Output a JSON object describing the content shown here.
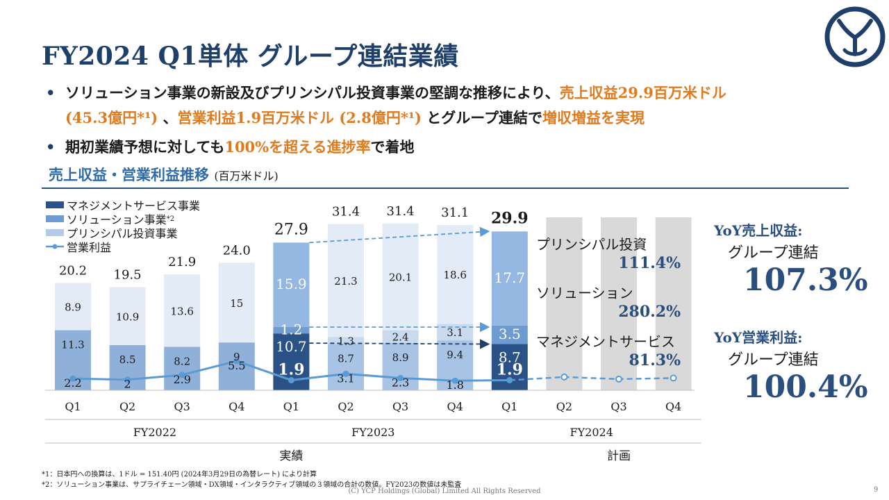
{
  "title": "FY2024 Q1単体 グループ連結業績",
  "bullets": [
    {
      "parts": [
        {
          "text": "ソリューション事業の新設及びプリンシパル投資事業の堅調な推移により、",
          "hl": false
        },
        {
          "text": "売上収益29.9百万米ドル",
          "hl": true
        }
      ]
    },
    {
      "parts": [
        {
          "text": "(45.3億円*¹)",
          "hl": true
        },
        {
          "text": " 、",
          "hl": false
        },
        {
          "text": "営業利益1.9百万米ドル (2.8億円*¹)",
          "hl": true
        },
        {
          "text": " とグループ連結で",
          "hl": false
        },
        {
          "text": "増収増益を実現",
          "hl": true
        }
      ]
    },
    {
      "parts": [
        {
          "text": "期初業績予想に対しても",
          "hl": false
        },
        {
          "text": "100%を超える進捗率",
          "hl": true
        },
        {
          "text": "で着地",
          "hl": false
        }
      ]
    }
  ],
  "chart_heading": "売上収益・営業利益推移",
  "chart_unit": "(百万米ドル)",
  "colors": {
    "management": "#2a5287",
    "solution": "#6e9bd0",
    "principal": "#d6e2f1",
    "line": "#5b9bd5",
    "plan": "#d9d9d9",
    "accent": "#e07a1f",
    "navy": "#1f3f6b"
  },
  "legend": [
    {
      "label": "マネジメントサービス事業",
      "sup": ""
    },
    {
      "label": "ソリューション事業",
      "sup": "*2"
    },
    {
      "label": "プリンシパル投資事業",
      "sup": ""
    },
    {
      "label": "営業利益",
      "sup": ""
    }
  ],
  "chart_data": {
    "type": "bar",
    "stacked": true,
    "categories": [
      "Q1",
      "Q2",
      "Q3",
      "Q4",
      "Q1",
      "Q2",
      "Q3",
      "Q4",
      "Q1",
      "Q2",
      "Q3",
      "Q4"
    ],
    "groups": [
      {
        "label": "FY2022",
        "from": 0,
        "to": 3
      },
      {
        "label": "FY2023",
        "from": 4,
        "to": 7
      },
      {
        "label": "FY2024",
        "from": 8,
        "to": 11
      }
    ],
    "super_groups": [
      {
        "label": "実績",
        "from": 0,
        "to": 8
      },
      {
        "label": "計画",
        "from": 9,
        "to": 11
      }
    ],
    "series": [
      {
        "name": "マネジメントサービス事業",
        "values": [
          11.3,
          8.5,
          8.2,
          9.0,
          10.7,
          8.7,
          8.9,
          9.4,
          8.7,
          null,
          null,
          null
        ]
      },
      {
        "name": "ソリューション事業",
        "values": [
          0,
          0,
          0,
          0,
          1.2,
          1.3,
          2.4,
          3.1,
          3.5,
          null,
          null,
          null
        ]
      },
      {
        "name": "プリンシパル投資事業",
        "values": [
          8.9,
          10.9,
          13.6,
          15.0,
          15.9,
          21.3,
          20.1,
          18.6,
          17.7,
          null,
          null,
          null
        ]
      }
    ],
    "totals": [
      "20.2",
      "19.5",
      "21.9",
      "24.0",
      "27.9",
      "31.4",
      "31.4",
      "31.1",
      "29.9",
      "",
      "",
      ""
    ],
    "operating_income": {
      "name": "営業利益",
      "values": [
        2.2,
        2.0,
        2.9,
        5.5,
        1.9,
        3.1,
        2.3,
        1.8,
        1.9,
        null,
        null,
        null
      ]
    },
    "plan_operating_income": [
      2.5,
      2.1,
      2.3
    ],
    "ylim": [
      0,
      35
    ]
  },
  "growth_labels": [
    {
      "label": "プリンシパル投資",
      "value": "111.4%"
    },
    {
      "label": "ソリューション",
      "value": "280.2%"
    },
    {
      "label": "マネジメントサービス",
      "value": "81.3%"
    }
  ],
  "yoy": [
    {
      "title": "YoY売上収益:",
      "sub": "グループ連結",
      "value": "107.3%"
    },
    {
      "title": "YoY営業利益:",
      "sub": "グループ連結",
      "value": "100.4%"
    }
  ],
  "footnotes": [
    "*1：日本円への換算は、1ドル = 151.40円 (2024年3月29日の為替レート) により計算",
    "*2：ソリューション事業は、サプライチェーン領域・DX領域・インタラクティブ領域の３領域の合計の数値。FY2023の数値は未監査"
  ],
  "copyright": "(C) YCP Holdings (Global) Limited All Rights Reserved",
  "page_number": "9"
}
